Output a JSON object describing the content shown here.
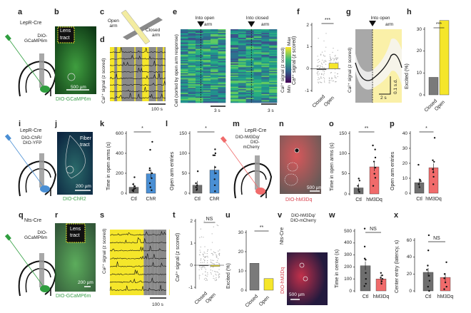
{
  "panels": {
    "a": "a",
    "b": "b",
    "c": "c",
    "d": "d",
    "e": "e",
    "f": "f",
    "g": "g",
    "h": "h",
    "i": "i",
    "j": "j",
    "k": "k",
    "l": "l",
    "m": "m",
    "n": "n",
    "o": "o",
    "p": "p",
    "q": "q",
    "r": "r",
    "s": "s",
    "t": "t",
    "u": "u",
    "v": "v",
    "w": "w",
    "x": "x"
  },
  "text": {
    "lepr_cre": "LepR-Cre",
    "nts_cre": "Nts-Cre",
    "dio_gcamp": "DIO-\nGCaMP6m",
    "dio_gcamp_caption": "DIO-GCaMP6m",
    "lens": "Lens",
    "tract": "tract",
    "fiber": "Fiber",
    "f_mark": "f",
    "scale_500": "500 µm",
    "scale_200": "200 µm",
    "open_arm": "Open\narm",
    "closed_arm": "Closed\narm",
    "ca_signal": "Ca²⁺ signal (z scored)",
    "scale_100s": "100 s",
    "into_open": "Into open",
    "into_closed": "Into closed",
    "arm": "arm",
    "cell_sorted": "Cell (sorted by open arm response)",
    "scale_3s": "3 s",
    "max": "Max",
    "min": "Min",
    "scale_2s": "2 s",
    "scale_01sd": "0.1 s.d.",
    "dio_chr": "DIO-ChR/\nDIO-YFP",
    "dio_chr2": "DIO-ChR2",
    "dio_hm3dq": "DIO-hM3Dq/\nDIO-\nmCherry",
    "dio_hm3dq_cap": "DIO-hM3Dq",
    "dio_hm3dq_v": "DIO-hM3Dq/\nDIO-mCherry"
  },
  "colors": {
    "gcamp": "#2f9e3f",
    "chr": "#4a8fd4",
    "hm3dq": "#f06b6b",
    "open": "#f5e62a",
    "closed": "#7a7a7a",
    "ctl": "#6e6e6e"
  },
  "chart_data": [
    {
      "panel": "f",
      "type": "bar",
      "categories": [
        "Closed",
        "Open"
      ],
      "values": [
        -0.05,
        0.25
      ],
      "ylabel": "Ca²⁺ signal (z scored)",
      "ylim": [
        -1.2,
        2.1
      ],
      "yticks": [
        "2",
        "1",
        "0",
        "-1"
      ],
      "significance": "***"
    },
    {
      "panel": "g",
      "type": "line",
      "title": "Into open arm",
      "ylabel": "Ca²⁺ signal (z scored)",
      "scalebars": [
        "2 s",
        "0.1 s.d."
      ]
    },
    {
      "panel": "h",
      "type": "bar",
      "categories": [
        "Closed",
        "Open"
      ],
      "values": [
        8,
        34
      ],
      "ylabel": "Excited (%)",
      "ylim": [
        0,
        35
      ],
      "yticks": [
        "0",
        "10",
        "20",
        "30"
      ],
      "significance": "***"
    },
    {
      "panel": "k",
      "type": "bar",
      "categories": [
        "Ctl",
        "ChR"
      ],
      "values": [
        60,
        195
      ],
      "ylabel": "Time in open arms (s)",
      "ylim": [
        0,
        600
      ],
      "yticks": [
        "0",
        "200",
        "400",
        "600"
      ],
      "significance": "*",
      "points": [
        [
          160,
          90,
          70,
          50,
          40,
          30,
          20
        ],
        [
          515,
          435,
          250,
          230,
          200,
          150,
          100,
          60,
          30
        ]
      ]
    },
    {
      "panel": "l",
      "type": "bar",
      "categories": [
        "Ctl",
        "ChR"
      ],
      "values": [
        20,
        58
      ],
      "ylabel": "Open arm entries",
      "ylim": [
        0,
        150
      ],
      "yticks": [
        "0",
        "50",
        "100",
        "150"
      ],
      "significance": "*",
      "points": [
        [
          55,
          25,
          20,
          15,
          10,
          8
        ],
        [
          110,
          100,
          95,
          95,
          65,
          50,
          35,
          20,
          5
        ]
      ]
    },
    {
      "panel": "o",
      "type": "bar",
      "categories": [
        "Ctl",
        "hM3Dq"
      ],
      "values": [
        15,
        67
      ],
      "ylabel": "Time in open arms (s)",
      "ylim": [
        0,
        150
      ],
      "yticks": [
        "0",
        "50",
        "100",
        "150"
      ],
      "significance": "**",
      "points": [
        [
          38,
          33,
          20,
          10,
          5
        ],
        [
          120,
          110,
          90,
          80,
          65,
          50,
          40,
          20
        ]
      ]
    },
    {
      "panel": "p",
      "type": "bar",
      "categories": [
        "Ctl",
        "hM3Dq"
      ],
      "values": [
        7,
        17
      ],
      "ylabel": "Open arm entries",
      "ylim": [
        0,
        40
      ],
      "yticks": [
        "0",
        "10",
        "20",
        "30",
        "40"
      ],
      "significance": "*",
      "points": [
        [
          19,
          9,
          8,
          6,
          4
        ],
        [
          37,
          22,
          21,
          16,
          14,
          11,
          6
        ]
      ]
    },
    {
      "panel": "t",
      "type": "bar",
      "categories": [
        "Closed",
        "Open"
      ],
      "values": [
        0,
        -0.05
      ],
      "ylabel": "Ca²⁺ signal (z scored)",
      "ylim": [
        -1.2,
        2.1
      ],
      "yticks": [
        "2",
        "1",
        "0",
        "-1"
      ],
      "significance": "NS"
    },
    {
      "panel": "u",
      "type": "bar",
      "categories": [
        "Closed",
        "Open"
      ],
      "values": [
        14,
        6
      ],
      "ylabel": "Excited (%)",
      "ylim": [
        0,
        30
      ],
      "yticks": [
        "0",
        "10",
        "20",
        "30"
      ],
      "significance": "**"
    },
    {
      "panel": "w",
      "type": "bar",
      "categories": [
        "Ctl",
        "hM3Dq"
      ],
      "values": [
        210,
        100
      ],
      "ylabel": "Time in center (s)",
      "ylim": [
        0,
        500
      ],
      "yticks": [
        "0",
        "100",
        "200",
        "300",
        "400",
        "500"
      ],
      "significance": "NS",
      "points": [
        [
          520,
          370,
          270,
          260,
          150,
          100,
          60,
          40
        ],
        [
          150,
          130,
          110,
          100,
          80,
          60
        ]
      ]
    },
    {
      "panel": "x",
      "type": "bar",
      "categories": [
        "Ctl",
        "hM3Dq"
      ],
      "values": [
        22,
        16
      ],
      "ylabel": "Center entry (latency, s)",
      "ylim": [
        0,
        65
      ],
      "yticks": [
        "0",
        "20",
        "40",
        "60"
      ],
      "significance": "NS",
      "points": [
        [
          66,
          48,
          30,
          25,
          18,
          12,
          5,
          0
        ],
        [
          34,
          20,
          15,
          10,
          5,
          2
        ]
      ]
    }
  ]
}
